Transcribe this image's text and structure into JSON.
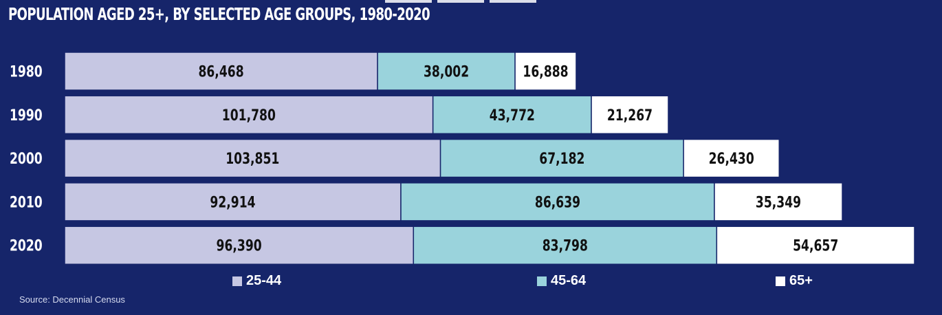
{
  "title": "POPULATION AGED 25+, BY SELECTED AGE GROUPS, 1980-2020",
  "source": "Source: Decennial Census",
  "colors": {
    "background": "#16256a",
    "age_25_44": "#c6c7e3",
    "age_45_64": "#9ad3dc",
    "age_65_plus": "#ffffff",
    "text_dark": "#111111",
    "text_light": "#ffffff"
  },
  "chart_data": {
    "type": "bar",
    "orientation": "horizontal",
    "stacked": true,
    "categories": [
      "1980",
      "1990",
      "2000",
      "2010",
      "2020"
    ],
    "series": [
      {
        "name": "25-44",
        "values": [
          86468,
          101780,
          103851,
          92914,
          96390
        ],
        "labels": [
          "86,468",
          "101,780",
          "103,851",
          "92,914",
          "96,390"
        ]
      },
      {
        "name": "45-64",
        "values": [
          38002,
          43772,
          67182,
          86639,
          83798
        ],
        "labels": [
          "38,002",
          "43,772",
          "67,182",
          "86,639",
          "83,798"
        ]
      },
      {
        "name": "65+",
        "values": [
          16888,
          21267,
          26430,
          35349,
          54657
        ],
        "labels": [
          "16,888",
          "21,267",
          "26,430",
          "35,349",
          "54,657"
        ]
      }
    ],
    "legend_position": "bottom",
    "grid": false
  }
}
